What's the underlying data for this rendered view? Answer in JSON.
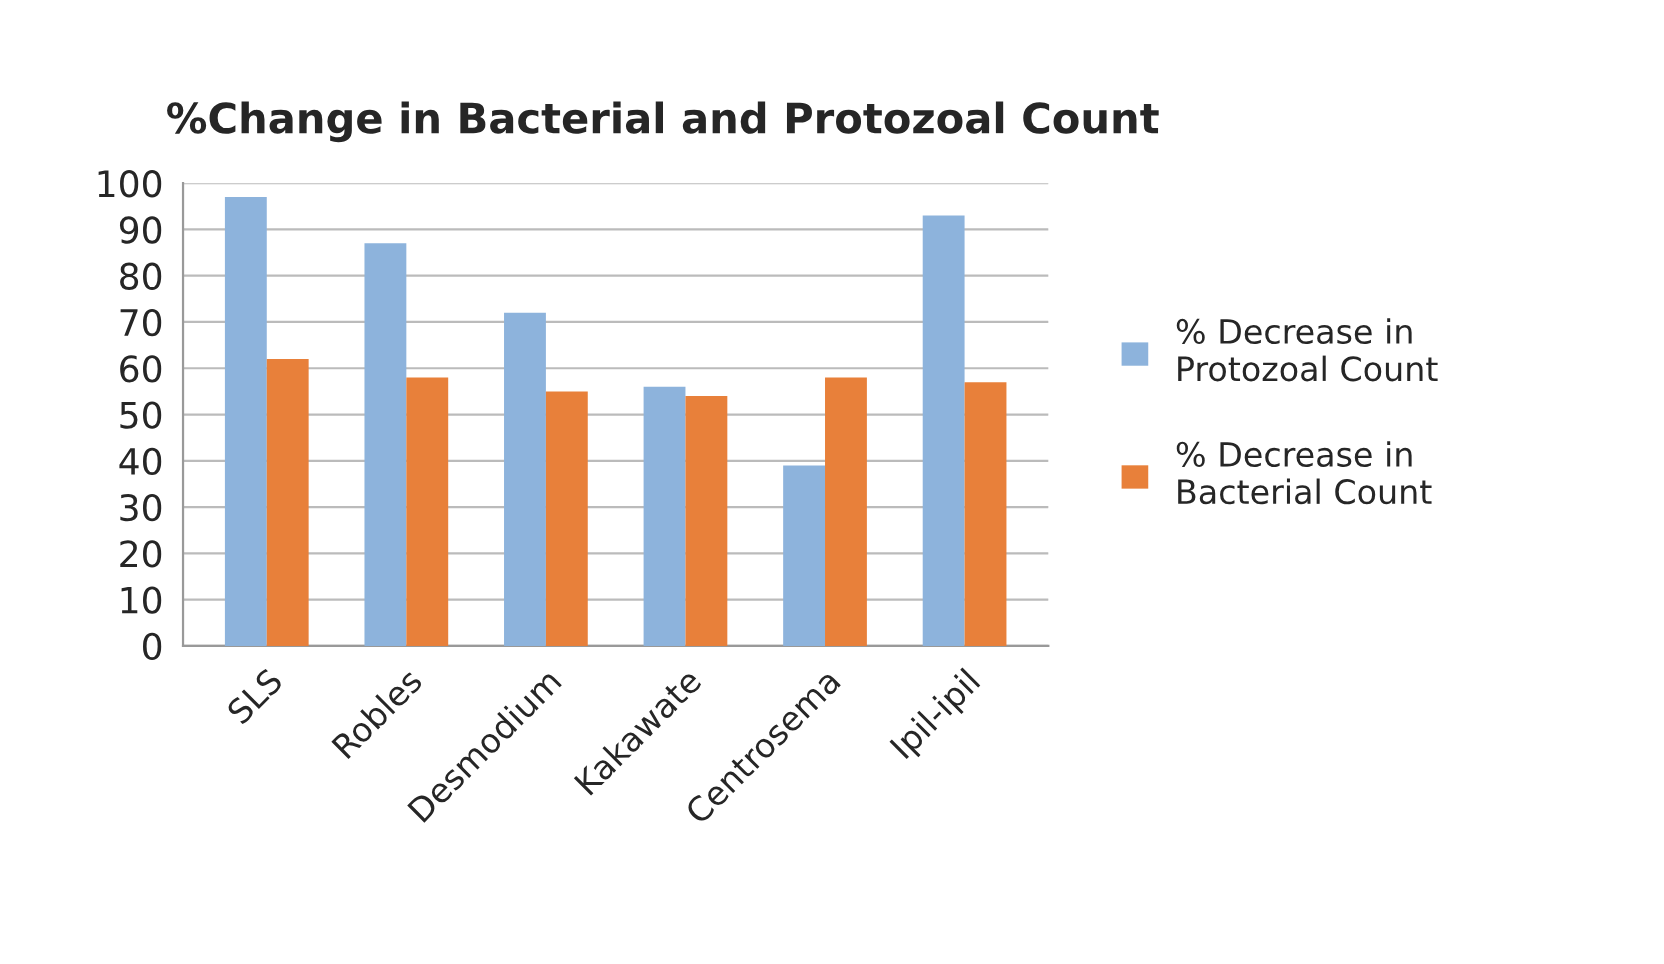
{
  "chart_data": {
    "type": "bar",
    "title": "%Change in Bacterial and Protozoal Count",
    "categories": [
      "SLS",
      "Robles",
      "Desmodium",
      "Kakawate",
      "Centrosema",
      "Ipil-ipil"
    ],
    "series": [
      {
        "name": "% Decrease in Protozoal Count",
        "color": "#8db3dc",
        "values": [
          97,
          87,
          72,
          56,
          39,
          93
        ]
      },
      {
        "name": "% Decrease in Bacterial Count",
        "color": "#e8803a",
        "values": [
          62,
          58,
          55,
          54,
          58,
          57
        ]
      }
    ],
    "ylim": [
      0,
      100
    ],
    "yticks": [
      0,
      10,
      20,
      30,
      40,
      50,
      60,
      70,
      80,
      90,
      100
    ],
    "grid": "y",
    "legend": "right"
  }
}
